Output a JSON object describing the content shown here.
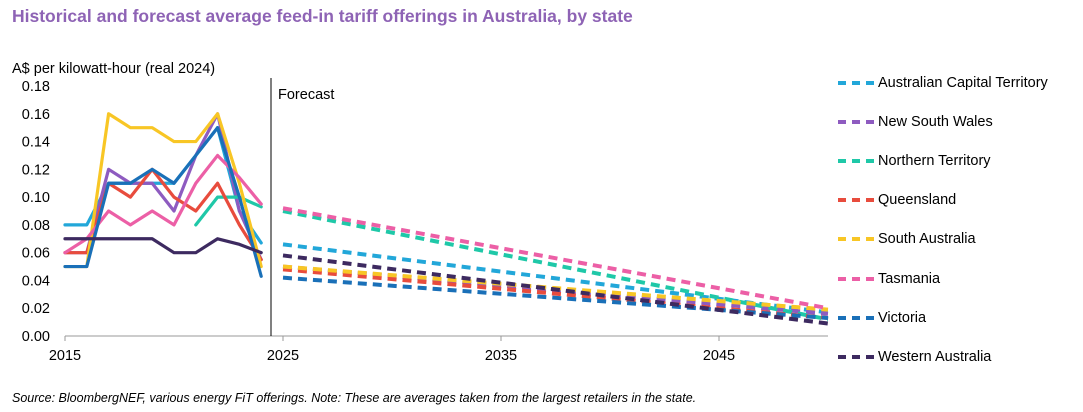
{
  "title": "Historical and forecast average feed-in tariff offerings in Australia, by state",
  "source": "Source: BloombergNEF, various energy FiT offerings. Note: These are averages taken from the largest retailers in the state.",
  "chart_data": {
    "type": "line",
    "title": "Historical and forecast average feed-in tariff offerings in Australia, by state",
    "ylabel": "A$ per kilowatt-hour (real 2024)",
    "xlabel": "",
    "xlim": [
      2015,
      2050
    ],
    "ylim": [
      0,
      0.18
    ],
    "x_ticks": [
      "2015",
      "2025",
      "2035",
      "2045"
    ],
    "y_ticks": [
      "0.00",
      "0.02",
      "0.04",
      "0.06",
      "0.08",
      "0.10",
      "0.12",
      "0.14",
      "0.16",
      "0.18"
    ],
    "annotation": "Forecast",
    "forecast_start": 2025,
    "series": [
      {
        "name": "Australian Capital Territory",
        "color": "#22a7d9",
        "historical": {
          "x": [
            2015,
            2016,
            2017,
            2018,
            2019,
            2020,
            2021,
            2022,
            2023,
            2024
          ],
          "y": [
            0.08,
            0.08,
            0.11,
            0.11,
            0.11,
            0.11,
            0.13,
            0.15,
            0.09,
            0.067
          ]
        },
        "forecast": {
          "x": [
            2025,
            2050
          ],
          "y": [
            0.066,
            0.017
          ]
        }
      },
      {
        "name": "New South Wales",
        "color": "#8e5bc0",
        "historical": {
          "x": [
            2015,
            2016,
            2017,
            2018,
            2019,
            2020,
            2021,
            2022,
            2023,
            2024
          ],
          "y": [
            0.06,
            0.06,
            0.12,
            0.11,
            0.11,
            0.09,
            0.13,
            0.16,
            0.09,
            0.055
          ]
        },
        "forecast": {
          "x": [
            2025,
            2050
          ],
          "y": [
            0.05,
            0.016
          ]
        }
      },
      {
        "name": "Northern Territory",
        "color": "#1fc8a8",
        "historical": {
          "x": [
            2021,
            2022,
            2023,
            2024
          ],
          "y": [
            0.08,
            0.1,
            0.1,
            0.093
          ]
        },
        "forecast": {
          "x": [
            2025,
            2050
          ],
          "y": [
            0.09,
            0.012
          ]
        }
      },
      {
        "name": "Queensland",
        "color": "#e84c3d",
        "historical": {
          "x": [
            2015,
            2016,
            2017,
            2018,
            2019,
            2020,
            2021,
            2022,
            2023,
            2024
          ],
          "y": [
            0.06,
            0.06,
            0.11,
            0.1,
            0.12,
            0.1,
            0.09,
            0.11,
            0.08,
            0.055
          ]
        },
        "forecast": {
          "x": [
            2025,
            2050
          ],
          "y": [
            0.048,
            0.013
          ]
        }
      },
      {
        "name": "South Australia",
        "color": "#f8c625",
        "historical": {
          "x": [
            2015,
            2016,
            2017,
            2018,
            2019,
            2020,
            2021,
            2022,
            2023,
            2024
          ],
          "y": [
            0.05,
            0.05,
            0.16,
            0.15,
            0.15,
            0.14,
            0.14,
            0.16,
            0.11,
            0.05
          ]
        },
        "forecast": {
          "x": [
            2025,
            2050
          ],
          "y": [
            0.05,
            0.019
          ]
        }
      },
      {
        "name": "Tasmania",
        "color": "#ec5fa6",
        "historical": {
          "x": [
            2015,
            2016,
            2017,
            2018,
            2019,
            2020,
            2021,
            2022,
            2023,
            2024
          ],
          "y": [
            0.06,
            0.07,
            0.09,
            0.08,
            0.09,
            0.08,
            0.11,
            0.13,
            0.114,
            0.095
          ]
        },
        "forecast": {
          "x": [
            2025,
            2050
          ],
          "y": [
            0.092,
            0.02
          ]
        }
      },
      {
        "name": "Victoria",
        "color": "#1a70b8",
        "historical": {
          "x": [
            2015,
            2016,
            2017,
            2018,
            2019,
            2020,
            2021,
            2022,
            2023,
            2024
          ],
          "y": [
            0.05,
            0.05,
            0.11,
            0.11,
            0.12,
            0.11,
            0.13,
            0.15,
            0.1,
            0.043
          ]
        },
        "forecast": {
          "x": [
            2025,
            2050
          ],
          "y": [
            0.042,
            0.013
          ]
        }
      },
      {
        "name": "Western Australia",
        "color": "#3d2a60",
        "historical": {
          "x": [
            2015,
            2016,
            2017,
            2018,
            2019,
            2020,
            2021,
            2022,
            2023,
            2024
          ],
          "y": [
            0.07,
            0.07,
            0.07,
            0.07,
            0.07,
            0.06,
            0.06,
            0.07,
            0.066,
            0.06
          ]
        },
        "forecast": {
          "x": [
            2025,
            2050
          ],
          "y": [
            0.058,
            0.009
          ]
        }
      }
    ]
  }
}
